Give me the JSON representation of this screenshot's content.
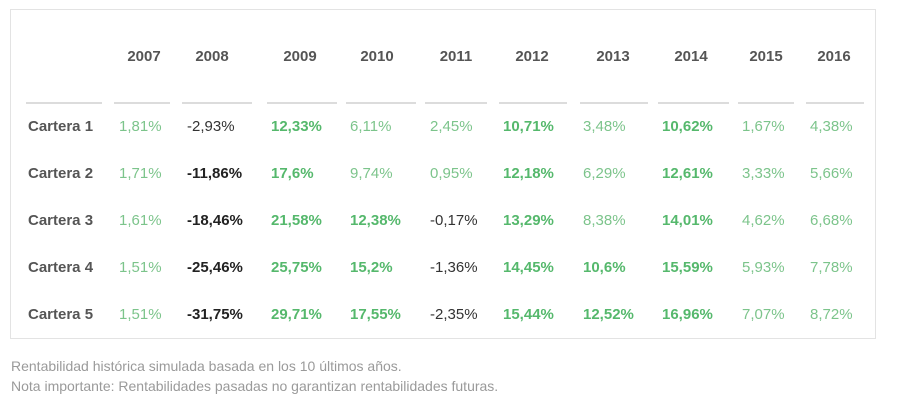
{
  "table": {
    "years": [
      "2007",
      "2008",
      "2009",
      "2010",
      "2011",
      "2012",
      "2013",
      "2014",
      "2015",
      "2016"
    ],
    "rows": [
      {
        "label": "Cartera 1",
        "values": [
          "1,81%",
          "-2,93%",
          "12,33%",
          "6,11%",
          "2,45%",
          "10,71%",
          "3,48%",
          "10,62%",
          "1,67%",
          "4,38%"
        ],
        "styles": [
          "light",
          "plain",
          "bold-green",
          "light",
          "light",
          "bold-green",
          "light",
          "bold-green",
          "light",
          "light"
        ]
      },
      {
        "label": "Cartera 2",
        "values": [
          "1,71%",
          "-11,86%",
          "17,6%",
          "9,74%",
          "0,95%",
          "12,18%",
          "6,29%",
          "12,61%",
          "3,33%",
          "5,66%"
        ],
        "styles": [
          "light",
          "bold-dark",
          "bold-green",
          "light",
          "light",
          "bold-green",
          "light",
          "bold-green",
          "light",
          "light"
        ]
      },
      {
        "label": "Cartera 3",
        "values": [
          "1,61%",
          "-18,46%",
          "21,58%",
          "12,38%",
          "-0,17%",
          "13,29%",
          "8,38%",
          "14,01%",
          "4,62%",
          "6,68%"
        ],
        "styles": [
          "light",
          "bold-dark",
          "bold-green",
          "bold-green",
          "plain",
          "bold-green",
          "light",
          "bold-green",
          "light",
          "light"
        ]
      },
      {
        "label": "Cartera 4",
        "values": [
          "1,51%",
          "-25,46%",
          "25,75%",
          "15,2%",
          "-1,36%",
          "14,45%",
          "10,6%",
          "15,59%",
          "5,93%",
          "7,78%"
        ],
        "styles": [
          "light",
          "bold-dark",
          "bold-green",
          "bold-green",
          "plain",
          "bold-green",
          "bold-green",
          "bold-green",
          "light",
          "light"
        ]
      },
      {
        "label": "Cartera 5",
        "values": [
          "1,51%",
          "-31,75%",
          "29,71%",
          "17,55%",
          "-2,35%",
          "15,44%",
          "12,52%",
          "16,96%",
          "7,07%",
          "8,72%"
        ],
        "styles": [
          "light",
          "bold-dark",
          "bold-green",
          "bold-green",
          "plain",
          "bold-green",
          "bold-green",
          "bold-green",
          "light",
          "light"
        ]
      }
    ]
  },
  "notes": {
    "line1": "Rentabilidad histórica simulada basada en los 10 últimos años.",
    "line2": "Nota importante: Rentabilidades pasadas no garantizan rentabilidades futuras."
  },
  "colors": {
    "light_green": "#7cc48b",
    "bold_green": "#55b86c",
    "label_gray": "#555555",
    "note_gray": "#9a9a9a",
    "rule_gray": "#dcdcdc"
  }
}
